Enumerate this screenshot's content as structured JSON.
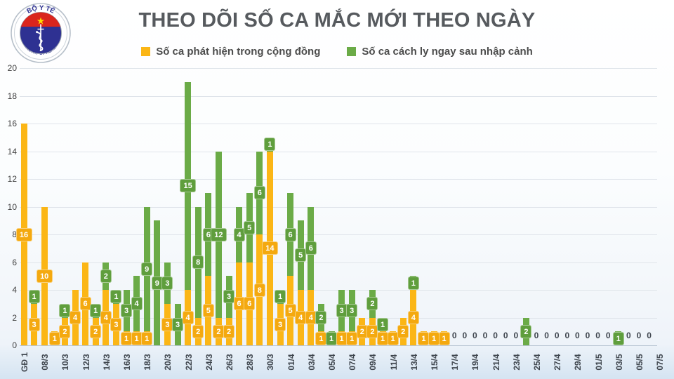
{
  "header": {
    "title": "THEO DÕI SỐ CA MẮC MỚI THEO NGÀY",
    "logo": {
      "top_text": "BỘ Y TẾ",
      "bottom_text": "MINISTRY OF HEALTH"
    }
  },
  "legend": {
    "items": [
      {
        "label": "Số ca phát hiện trong cộng đồng",
        "color": "#FBB616",
        "label_box_color": "#F4A90F"
      },
      {
        "label": "Số ca cách ly ngay sau nhập cảnh",
        "color": "#6BAB47",
        "label_box_color": "#5F9E3D"
      }
    ]
  },
  "chart_data": {
    "type": "bar",
    "stacked": true,
    "title": "THEO DÕI SỐ CA MẮC MỚI THEO NGÀY",
    "xlabel": "",
    "ylabel": "",
    "ylim": [
      0,
      20
    ],
    "y_ticks": [
      20,
      18,
      16,
      14,
      12,
      10,
      8,
      6,
      4,
      2,
      0
    ],
    "grid": true,
    "legend_position": "top",
    "series_names": {
      "c": "Số ca phát hiện trong cộng đồng",
      "q": "Số ca cách ly ngay sau nhập cảnh"
    },
    "days": [
      {
        "x": "GĐ 1",
        "c": 16,
        "q": 0,
        "z": false
      },
      {
        "x": "",
        "c": 3,
        "q": 1,
        "z": false
      },
      {
        "x": "08/3",
        "c": 10,
        "q": 0,
        "z": false
      },
      {
        "x": "",
        "c": 1,
        "q": 0,
        "z": false
      },
      {
        "x": "10/3",
        "c": 2,
        "q": 1,
        "z": false
      },
      {
        "x": "",
        "c": 4,
        "q": 0,
        "z": false
      },
      {
        "x": "12/3",
        "c": 6,
        "q": 0,
        "z": false
      },
      {
        "x": "",
        "c": 2,
        "q": 1,
        "z": false
      },
      {
        "x": "14/3",
        "c": 4,
        "q": 2,
        "z": false
      },
      {
        "x": "",
        "c": 3,
        "q": 1,
        "z": false
      },
      {
        "x": "16/3",
        "c": 1,
        "q": 3,
        "z": false
      },
      {
        "x": "",
        "c": 1,
        "q": 4,
        "z": false
      },
      {
        "x": "18/3",
        "c": 1,
        "q": 9,
        "z": false
      },
      {
        "x": "",
        "c": 0,
        "q": 9,
        "z": false
      },
      {
        "x": "20/3",
        "c": 3,
        "q": 3,
        "z": false
      },
      {
        "x": "",
        "c": 0,
        "q": 3,
        "z": false
      },
      {
        "x": "22/3",
        "c": 4,
        "q": 15,
        "z": false
      },
      {
        "x": "",
        "c": 2,
        "q": 8,
        "z": false
      },
      {
        "x": "24/3",
        "c": 5,
        "q": 6,
        "z": false
      },
      {
        "x": "",
        "c": 2,
        "q": 12,
        "z": false
      },
      {
        "x": "26/3",
        "c": 2,
        "q": 3,
        "z": false
      },
      {
        "x": "",
        "c": 6,
        "q": 4,
        "z": false
      },
      {
        "x": "28/3",
        "c": 6,
        "q": 5,
        "z": false
      },
      {
        "x": "",
        "c": 8,
        "q": 6,
        "z": false
      },
      {
        "x": "30/3",
        "c": 14,
        "q": 1,
        "z": false
      },
      {
        "x": "",
        "c": 3,
        "q": 1,
        "z": false
      },
      {
        "x": "01/4",
        "c": 5,
        "q": 6,
        "z": false
      },
      {
        "x": "",
        "c": 4,
        "q": 5,
        "z": false
      },
      {
        "x": "03/4",
        "c": 4,
        "q": 6,
        "z": false
      },
      {
        "x": "",
        "c": 1,
        "q": 2,
        "z": false
      },
      {
        "x": "05/4",
        "c": 0,
        "q": 1,
        "z": false
      },
      {
        "x": "",
        "c": 1,
        "q": 3,
        "z": false
      },
      {
        "x": "07/4",
        "c": 1,
        "q": 3,
        "z": false
      },
      {
        "x": "",
        "c": 2,
        "q": 0,
        "z": false
      },
      {
        "x": "09/4",
        "c": 2,
        "q": 2,
        "z": false
      },
      {
        "x": "",
        "c": 1,
        "q": 1,
        "z": false
      },
      {
        "x": "11/4",
        "c": 1,
        "q": 0,
        "z": false
      },
      {
        "x": "",
        "c": 2,
        "q": 0,
        "z": false
      },
      {
        "x": "13/4",
        "c": 4,
        "q": 1,
        "z": false
      },
      {
        "x": "",
        "c": 1,
        "q": 0,
        "z": false
      },
      {
        "x": "15/4",
        "c": 1,
        "q": 0,
        "z": false
      },
      {
        "x": "",
        "c": 1,
        "q": 0,
        "z": false
      },
      {
        "x": "17/4",
        "c": 0,
        "q": 0,
        "z": true
      },
      {
        "x": "",
        "c": 0,
        "q": 0,
        "z": true
      },
      {
        "x": "19/4",
        "c": 0,
        "q": 0,
        "z": true
      },
      {
        "x": "",
        "c": 0,
        "q": 0,
        "z": true
      },
      {
        "x": "21/4",
        "c": 0,
        "q": 0,
        "z": true
      },
      {
        "x": "",
        "c": 0,
        "q": 0,
        "z": true
      },
      {
        "x": "23/4",
        "c": 0,
        "q": 0,
        "z": true
      },
      {
        "x": "",
        "c": 0,
        "q": 2,
        "z": false
      },
      {
        "x": "25/4",
        "c": 0,
        "q": 0,
        "z": true
      },
      {
        "x": "",
        "c": 0,
        "q": 0,
        "z": true
      },
      {
        "x": "27/4",
        "c": 0,
        "q": 0,
        "z": true
      },
      {
        "x": "",
        "c": 0,
        "q": 0,
        "z": true
      },
      {
        "x": "29/4",
        "c": 0,
        "q": 0,
        "z": true
      },
      {
        "x": "",
        "c": 0,
        "q": 0,
        "z": true
      },
      {
        "x": "01/5",
        "c": 0,
        "q": 0,
        "z": true
      },
      {
        "x": "",
        "c": 0,
        "q": 0,
        "z": true
      },
      {
        "x": "03/5",
        "c": 0,
        "q": 1,
        "z": false
      },
      {
        "x": "",
        "c": 0,
        "q": 0,
        "z": true
      },
      {
        "x": "05/5",
        "c": 0,
        "q": 0,
        "z": true
      },
      {
        "x": "",
        "c": 0,
        "q": 0,
        "z": true
      },
      {
        "x": "07/5",
        "c": 0,
        "q": 0,
        "z": false
      }
    ]
  }
}
